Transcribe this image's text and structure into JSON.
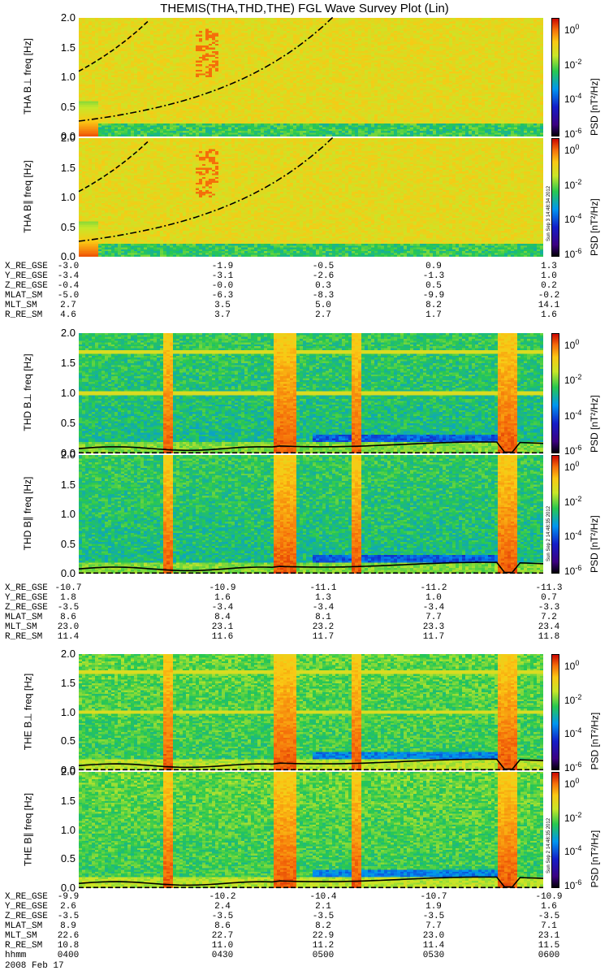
{
  "title": "THEMIS(THA,THD,THE) FGL Wave Survey Plot (Lin)",
  "date_label": "2008 Feb 17",
  "freq_axis_label": "freq [Hz]",
  "colorbar_label": "PSD [nT²/Hz]",
  "colorbar_ticks": [
    {
      "base": "10",
      "exp": "0"
    },
    {
      "base": "10",
      "exp": "-2"
    },
    {
      "base": "10",
      "exp": "-4"
    },
    {
      "base": "10",
      "exp": "-6"
    }
  ],
  "freq_ticks": [
    "2.0",
    "1.5",
    "1.0",
    "0.5",
    "0.0"
  ],
  "stamps": [
    "Sun Sep  3 14:48:34 2012",
    "Sun Sep  2 14:48:35 2012",
    "Sun Sep  2 14:48:35 2012"
  ],
  "probes": [
    {
      "name": "THA",
      "panels": [
        "THA B⊥",
        "THA B∥"
      ],
      "ephemeris": [
        {
          "label": "X_RE_GSE",
          "values": [
            "-3.0",
            "-1.9",
            "-0.5",
            "0.9",
            "1.3"
          ]
        },
        {
          "label": "Y_RE_GSE",
          "values": [
            "-3.4",
            "-3.1",
            "-2.6",
            "-1.3",
            "1.0"
          ]
        },
        {
          "label": "Z_RE_GSE",
          "values": [
            "-0.4",
            "-0.0",
            "0.3",
            "0.5",
            "0.2"
          ]
        },
        {
          "label": "MLAT_SM",
          "values": [
            "-5.0",
            "-6.3",
            "-8.3",
            "-9.9",
            "-0.2"
          ]
        },
        {
          "label": "MLT_SM",
          "values": [
            "2.7",
            "3.5",
            "5.0",
            "8.2",
            "14.1"
          ]
        },
        {
          "label": "R_RE_SM",
          "values": [
            "4.6",
            "3.7",
            "2.7",
            "1.7",
            "1.6"
          ]
        }
      ]
    },
    {
      "name": "THD",
      "panels": [
        "THD B⊥",
        "THD B∥"
      ],
      "ephemeris": [
        {
          "label": "X_RE_GSE",
          "values": [
            "-10.7",
            "-10.9",
            "-11.1",
            "-11.2",
            "-11.3"
          ]
        },
        {
          "label": "Y_RE_GSE",
          "values": [
            "1.8",
            "1.6",
            "1.3",
            "1.0",
            "0.7"
          ]
        },
        {
          "label": "Z_RE_GSE",
          "values": [
            "-3.5",
            "-3.4",
            "-3.4",
            "-3.4",
            "-3.3"
          ]
        },
        {
          "label": "MLAT_SM",
          "values": [
            "8.6",
            "8.4",
            "8.1",
            "7.7",
            "7.2"
          ]
        },
        {
          "label": "MLT_SM",
          "values": [
            "23.0",
            "23.1",
            "23.2",
            "23.3",
            "23.4"
          ]
        },
        {
          "label": "R_RE_SM",
          "values": [
            "11.4",
            "11.6",
            "11.7",
            "11.7",
            "11.8"
          ]
        }
      ]
    },
    {
      "name": "THE",
      "panels": [
        "THE B⊥",
        "THE B∥"
      ],
      "ephemeris": [
        {
          "label": "X_RE_GSE",
          "values": [
            "-9.9",
            "-10.2",
            "-10.4",
            "-10.7",
            "-10.9"
          ]
        },
        {
          "label": "Y_RE_GSE",
          "values": [
            "2.6",
            "2.4",
            "2.1",
            "1.9",
            "1.6"
          ]
        },
        {
          "label": "Z_RE_GSE",
          "values": [
            "-3.5",
            "-3.5",
            "-3.5",
            "-3.5",
            "-3.5"
          ]
        },
        {
          "label": "MLAT_SM",
          "values": [
            "8.9",
            "8.6",
            "8.2",
            "7.7",
            "7.1"
          ]
        },
        {
          "label": "MLT_SM",
          "values": [
            "22.6",
            "22.7",
            "22.9",
            "23.0",
            "23.1"
          ]
        },
        {
          "label": "R_RE_SM",
          "values": [
            "10.8",
            "11.0",
            "11.2",
            "11.4",
            "11.5"
          ]
        },
        {
          "label": "hhmm",
          "values": [
            "0400",
            "0430",
            "0500",
            "0530",
            "0600"
          ]
        }
      ]
    }
  ],
  "chart_data": {
    "type": "heatmap",
    "title": "THEMIS(THA,THD,THE) FGL Wave Survey Plot (Lin)",
    "xlabel": "hhmm",
    "x_ticks": [
      "0400",
      "0430",
      "0500",
      "0530",
      "0600"
    ],
    "ylabel": "freq [Hz]",
    "ylim": [
      0,
      2.0
    ],
    "y_ticks": [
      0.0,
      0.5,
      1.0,
      1.5,
      2.0
    ],
    "colorbar": {
      "label": "PSD [nT²/Hz]",
      "scale": "log",
      "range": [
        1e-06,
        10
      ],
      "ticks": [
        "1e0",
        "1e-2",
        "1e-4",
        "1e-6"
      ]
    },
    "panels": [
      {
        "name": "THA B⊥",
        "style": "tha"
      },
      {
        "name": "THA B∥",
        "style": "tha"
      },
      {
        "name": "THD B⊥",
        "style": "thd"
      },
      {
        "name": "THD B∥",
        "style": "thd"
      },
      {
        "name": "THE B⊥",
        "style": "the"
      },
      {
        "name": "THE B∥",
        "style": "the"
      }
    ]
  }
}
